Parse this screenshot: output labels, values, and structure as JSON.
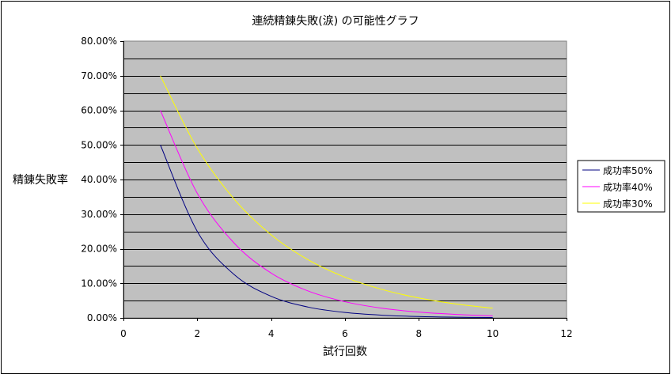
{
  "chart_data": {
    "type": "line",
    "title": "連続精錬失敗(涙) の可能性グラフ",
    "xlabel": "試行回数",
    "ylabel": "精錬失敗率",
    "xlim": [
      0,
      12
    ],
    "ylim": [
      0,
      80
    ],
    "x_ticks": [
      "0",
      "2",
      "4",
      "6",
      "8",
      "10",
      "12"
    ],
    "y_ticks": [
      "0.00%",
      "10.00%",
      "20.00%",
      "30.00%",
      "40.00%",
      "50.00%",
      "60.00%",
      "70.00%",
      "80.00%"
    ],
    "grid": "horizontal",
    "legend_position": "right",
    "x": [
      1,
      2,
      3,
      4,
      5,
      6,
      7,
      8,
      9,
      10
    ],
    "series": [
      {
        "name": "成功率50%",
        "color": "#000080",
        "values": [
          50.0,
          25.0,
          12.5,
          6.25,
          3.13,
          1.56,
          0.78,
          0.39,
          0.2,
          0.1
        ]
      },
      {
        "name": "成功率40%",
        "color": "#ff00ff",
        "values": [
          60.0,
          36.0,
          21.6,
          12.96,
          7.78,
          4.67,
          2.8,
          1.68,
          1.01,
          0.6
        ]
      },
      {
        "name": "成功率30%",
        "color": "#ffff00",
        "values": [
          70.0,
          49.0,
          34.3,
          24.01,
          16.81,
          11.76,
          8.24,
          5.76,
          4.04,
          2.82
        ]
      }
    ]
  }
}
